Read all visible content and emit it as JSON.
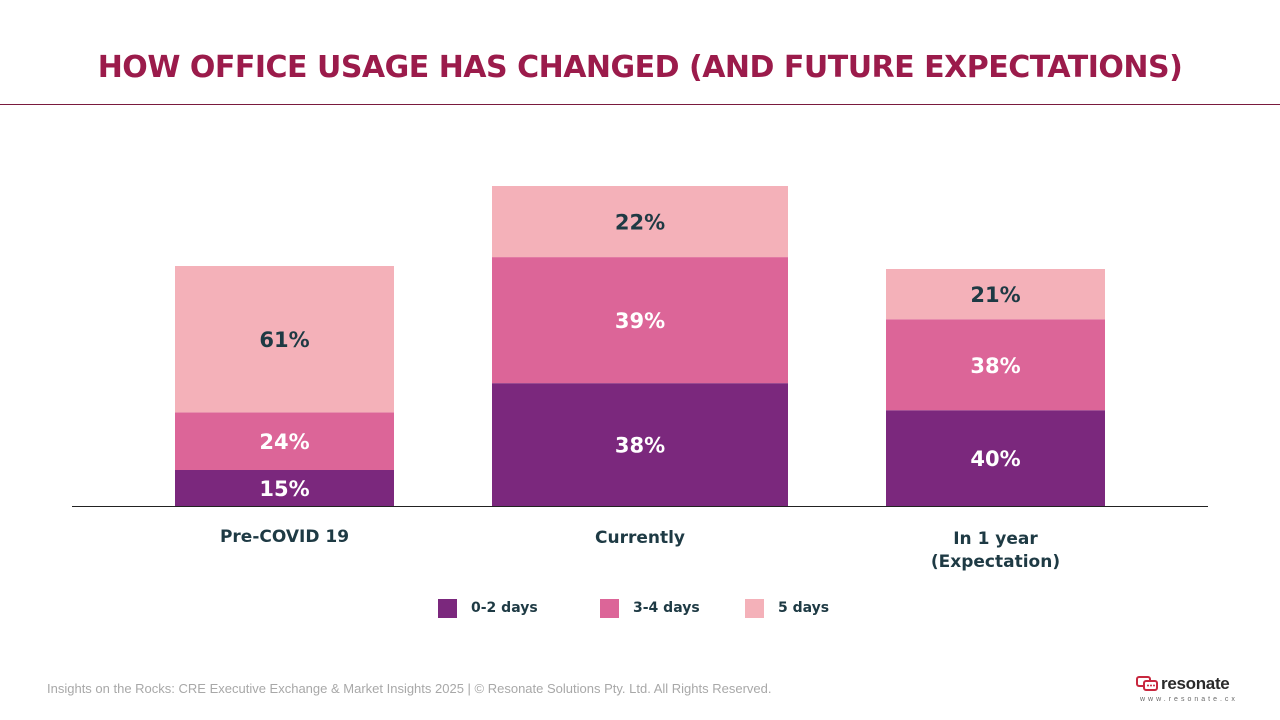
{
  "title": "HOW OFFICE USAGE HAS CHANGED (AND FUTURE EXPECTATIONS)",
  "colors": {
    "title": "#9b1b4b",
    "text": "#1e3a44",
    "series": [
      "#7b287d",
      "#dc6598",
      "#f4b1b9"
    ],
    "baseline": "#222222"
  },
  "chart_data": {
    "type": "bar",
    "stacked": true,
    "categories": [
      "Pre-COVID 19",
      "Currently",
      "In 1 year\n(Expectation)"
    ],
    "series": [
      {
        "name": "0-2 days",
        "values": [
          15,
          38,
          40
        ]
      },
      {
        "name": "3-4 days",
        "values": [
          24,
          39,
          38
        ]
      },
      {
        "name": "5 days",
        "values": [
          61,
          22,
          21
        ]
      }
    ],
    "data_labels": [
      [
        "15%",
        "38%",
        "40%"
      ],
      [
        "24%",
        "39%",
        "38%"
      ],
      [
        "61%",
        "22%",
        "21%"
      ]
    ],
    "legend_position": "bottom",
    "grid": false
  },
  "footer": "Insights on the Rocks: CRE Executive Exchange & Market Insights 2025 | © Resonate Solutions Pty. Ltd. All Rights Reserved.",
  "logo": {
    "word": "resonate",
    "url": "www.resonate.cx",
    "icon": "chat-bubbles-icon"
  }
}
